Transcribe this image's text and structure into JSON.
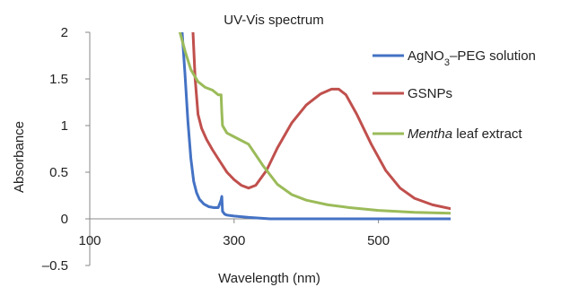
{
  "chart_data": {
    "type": "line",
    "title": "UV-Vis spectrum",
    "xlabel": "Wavelength (nm)",
    "ylabel": "Absorbance",
    "xlim": [
      100,
      600
    ],
    "ylim": [
      -0.5,
      2
    ],
    "xticks": [
      100,
      300,
      500
    ],
    "yticks": [
      -0.5,
      0,
      0.5,
      1,
      1.5,
      2
    ],
    "xtick_labels": [
      "100",
      "300",
      "500"
    ],
    "ytick_labels": [
      "–0.5",
      "0",
      "0.5",
      "1",
      "1.5",
      "2"
    ],
    "grid": false,
    "legend_position": "right",
    "series": [
      {
        "name": "AgNO3–PEG solution",
        "legend_parts": [
          {
            "text": "AgNO",
            "style": "normal"
          },
          {
            "text": "3",
            "style": "sub"
          },
          {
            "text": "–PEG solution",
            "style": "normal"
          }
        ],
        "color": "#4472c4",
        "x": [
          228,
          232,
          236,
          240,
          244,
          248,
          252,
          258,
          265,
          272,
          278,
          282,
          283,
          284,
          287,
          290,
          300,
          320,
          350,
          400,
          450,
          500,
          550,
          600
        ],
        "y": [
          2.0,
          1.55,
          1.05,
          0.65,
          0.4,
          0.28,
          0.21,
          0.16,
          0.13,
          0.12,
          0.12,
          0.2,
          0.24,
          0.08,
          0.05,
          0.04,
          0.03,
          0.015,
          0.0,
          0.0,
          0.0,
          0.0,
          0.0,
          0.0
        ]
      },
      {
        "name": "GSNPs",
        "color": "#c0504d",
        "x": [
          243,
          246,
          250,
          255,
          262,
          270,
          280,
          290,
          300,
          310,
          320,
          330,
          345,
          360,
          380,
          400,
          420,
          435,
          445,
          455,
          470,
          490,
          510,
          530,
          550,
          575,
          600
        ],
        "y": [
          2.0,
          1.5,
          1.12,
          0.97,
          0.85,
          0.74,
          0.62,
          0.5,
          0.42,
          0.36,
          0.33,
          0.36,
          0.52,
          0.76,
          1.03,
          1.22,
          1.34,
          1.39,
          1.39,
          1.33,
          1.12,
          0.8,
          0.52,
          0.33,
          0.22,
          0.15,
          0.11
        ]
      },
      {
        "name": "Mentha leaf extract",
        "legend_parts": [
          {
            "text": "Mentha",
            "style": "italic"
          },
          {
            "text": " leaf extract",
            "style": "normal"
          }
        ],
        "color": "#9bbb59",
        "x": [
          225,
          232,
          240,
          250,
          260,
          270,
          278,
          282,
          283,
          284,
          290,
          300,
          320,
          340,
          360,
          380,
          400,
          430,
          460,
          500,
          550,
          600
        ],
        "y": [
          2.0,
          1.8,
          1.6,
          1.47,
          1.41,
          1.38,
          1.33,
          1.33,
          1.14,
          1.0,
          0.92,
          0.88,
          0.8,
          0.57,
          0.37,
          0.26,
          0.2,
          0.15,
          0.12,
          0.09,
          0.07,
          0.06
        ]
      }
    ]
  }
}
